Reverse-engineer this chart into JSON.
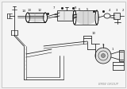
{
  "bg": "#f0f0f0",
  "fg": "#1a1a1a",
  "gray": "#555555",
  "lgray": "#888888",
  "lw": 0.55,
  "thin": 0.35,
  "figsize": [
    1.6,
    1.12
  ],
  "dpi": 100
}
